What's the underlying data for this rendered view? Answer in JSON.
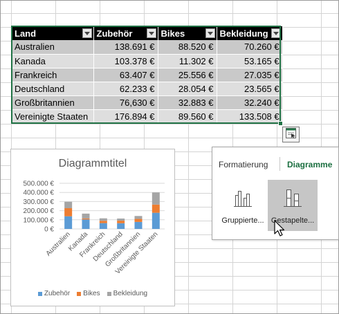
{
  "table": {
    "headers": [
      "Land",
      "Zubehör",
      "Bikes",
      "Bekleidung"
    ],
    "rows": [
      [
        "Australien",
        "138.691 €",
        "88.520 €",
        "70.260 €"
      ],
      [
        "Kanada",
        "103.378 €",
        "11.302 €",
        "53.165 €"
      ],
      [
        "Frankreich",
        "63.407 €",
        "25.556 €",
        "27.035 €"
      ],
      [
        "Deutschland",
        "62.233 €",
        "28.054 €",
        "23.565 €"
      ],
      [
        "Großbritannien",
        "76,630 €",
        "32.883 €",
        "32.240 €"
      ],
      [
        "Vereinigte Staaten",
        "176.894 €",
        "89.560 €",
        "133.508 €"
      ]
    ]
  },
  "chart_data": {
    "type": "bar",
    "stacked": true,
    "title": "Diagrammtitel",
    "categories": [
      "Australien",
      "Kanada",
      "Frankreich",
      "Deutschland",
      "Großbritannien",
      "Vereinigte Staaten"
    ],
    "series": [
      {
        "name": "Zubehör",
        "values": [
          138691,
          103378,
          63407,
          62233,
          76630,
          176894
        ],
        "color": "#5b9bd5"
      },
      {
        "name": "Bikes",
        "values": [
          88520,
          11302,
          25556,
          28054,
          32883,
          89560
        ],
        "color": "#ed7d31"
      },
      {
        "name": "Bekleidung",
        "values": [
          70260,
          53165,
          27035,
          23565,
          32240,
          133508
        ],
        "color": "#a5a5a5"
      }
    ],
    "ylim": [
      0,
      500000
    ],
    "ytick_values": [
      0,
      100000,
      200000,
      300000,
      400000,
      500000
    ],
    "ytick_labels": [
      "0 €",
      "100.000 €",
      "200.000 €",
      "300.000 €",
      "400.000 €",
      "500.000 €"
    ],
    "grid": true,
    "legend_position": "bottom"
  },
  "quick_analysis": {
    "tabs": [
      "Formatierung",
      "Diagramme"
    ],
    "active_tab": "Diagramme",
    "options": [
      {
        "label": "Gruppierte...",
        "icon": "clustered-column-chart-icon"
      },
      {
        "label": "Gestapelte...",
        "icon": "stacked-column-chart-icon",
        "hovered": true
      }
    ],
    "button_icon": "quick-analysis-icon"
  },
  "colors": {
    "accent": "#217346",
    "header_bg": "#000000",
    "active_tab": "#1a6e3f"
  }
}
